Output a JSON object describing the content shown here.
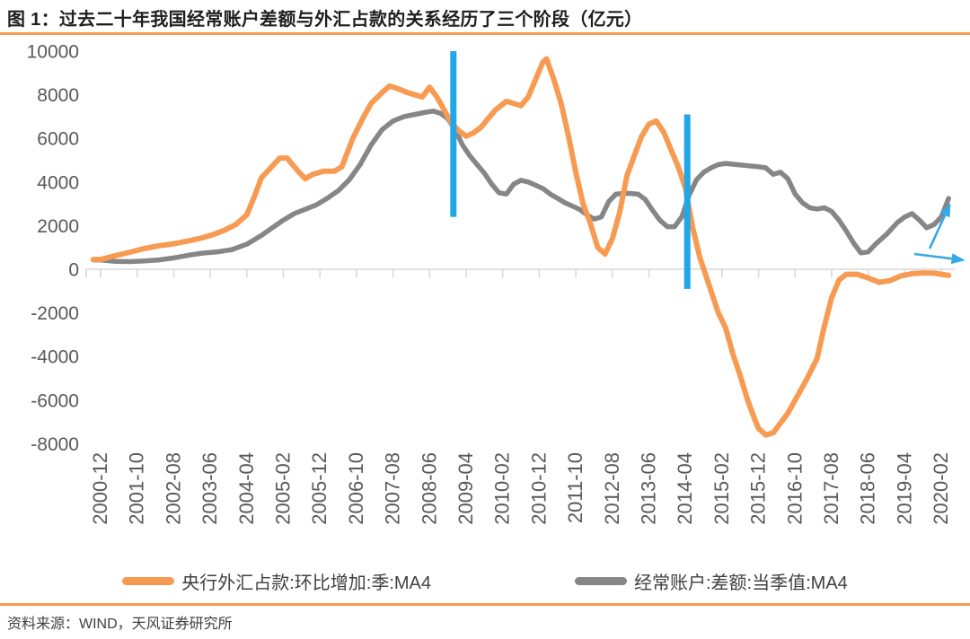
{
  "figure": {
    "title": "图 1：过去二十年我国经常账户差额与外汇占款的关系经历了三个阶段（亿元）",
    "source": "资料来源：WIND，天风证券研究所"
  },
  "colors": {
    "accent_orange": "#F79A52",
    "series_orange": "#F79A52",
    "series_gray": "#868686",
    "divider_blue": "#21A7E8",
    "arrow_blue": "#35A9E8",
    "axis_gray": "#D9D9D9",
    "tick_label": "#595959",
    "title_text": "#1F1F1F",
    "body_text": "#404040"
  },
  "chart_data": {
    "type": "line",
    "unit": "亿元",
    "title": "过去二十年我国经常账户差额与外汇占款的关系经历了三个阶段（亿元）",
    "grid": false,
    "legend_position": "bottom",
    "ylim": [
      -8000,
      10000
    ],
    "y_ticks": [
      10000,
      8000,
      6000,
      4000,
      2000,
      0,
      -2000,
      -4000,
      -6000,
      -8000
    ],
    "x_unit": "months_since_2000-12",
    "x_tick_step_months": 10,
    "x_tick_labels": [
      "2000-12",
      "2001-10",
      "2002-08",
      "2003-06",
      "2004-04",
      "2005-02",
      "2005-12",
      "2006-10",
      "2007-08",
      "2008-06",
      "2009-04",
      "2010-02",
      "2010-12",
      "2011-10",
      "2012-08",
      "2013-06",
      "2014-04",
      "2015-02",
      "2015-12",
      "2016-10",
      "2017-08",
      "2018-06",
      "2019-04",
      "2020-02"
    ],
    "series": [
      {
        "name": "央行外汇占款:环比增加:季:MA4",
        "color": "#F79A52",
        "points": [
          [
            -2,
            450
          ],
          [
            0,
            450
          ],
          [
            4,
            620
          ],
          [
            8,
            780
          ],
          [
            12,
            950
          ],
          [
            16,
            1080
          ],
          [
            20,
            1170
          ],
          [
            24,
            1300
          ],
          [
            28,
            1450
          ],
          [
            31,
            1600
          ],
          [
            34,
            1800
          ],
          [
            37,
            2050
          ],
          [
            40,
            2500
          ],
          [
            42,
            3300
          ],
          [
            44,
            4200
          ],
          [
            46,
            4550
          ],
          [
            49,
            5100
          ],
          [
            51,
            5100
          ],
          [
            54,
            4500
          ],
          [
            56,
            4150
          ],
          [
            58,
            4350
          ],
          [
            61,
            4500
          ],
          [
            64,
            4500
          ],
          [
            66,
            4700
          ],
          [
            69,
            6000
          ],
          [
            72,
            7000
          ],
          [
            74,
            7600
          ],
          [
            77,
            8100
          ],
          [
            79,
            8400
          ],
          [
            81,
            8300
          ],
          [
            84,
            8100
          ],
          [
            86,
            8000
          ],
          [
            88,
            7900
          ],
          [
            90,
            8350
          ],
          [
            92,
            7900
          ],
          [
            94,
            7300
          ],
          [
            96,
            6700
          ],
          [
            98,
            6350
          ],
          [
            100,
            6100
          ],
          [
            102,
            6250
          ],
          [
            104,
            6500
          ],
          [
            106,
            6900
          ],
          [
            108,
            7300
          ],
          [
            111,
            7700
          ],
          [
            113,
            7600
          ],
          [
            115,
            7500
          ],
          [
            117,
            7900
          ],
          [
            119,
            8700
          ],
          [
            121,
            9500
          ],
          [
            122,
            9650
          ],
          [
            124,
            8700
          ],
          [
            126,
            7600
          ],
          [
            128,
            6100
          ],
          [
            130,
            4450
          ],
          [
            132,
            3000
          ],
          [
            134,
            2100
          ],
          [
            136,
            1000
          ],
          [
            138,
            700
          ],
          [
            140,
            1400
          ],
          [
            142,
            2600
          ],
          [
            144,
            4300
          ],
          [
            146,
            5200
          ],
          [
            148,
            6100
          ],
          [
            150,
            6650
          ],
          [
            152,
            6800
          ],
          [
            154,
            6300
          ],
          [
            156,
            5500
          ],
          [
            158,
            4700
          ],
          [
            160,
            3700
          ],
          [
            162,
            1900
          ],
          [
            164,
            500
          ],
          [
            165,
            0
          ],
          [
            167,
            -1000
          ],
          [
            169,
            -2000
          ],
          [
            171,
            -2700
          ],
          [
            173,
            -3900
          ],
          [
            175,
            -4900
          ],
          [
            177,
            -6000
          ],
          [
            179,
            -6900
          ],
          [
            180,
            -7300
          ],
          [
            182,
            -7600
          ],
          [
            184,
            -7500
          ],
          [
            186,
            -7050
          ],
          [
            188,
            -6600
          ],
          [
            190,
            -6000
          ],
          [
            193,
            -5100
          ],
          [
            196,
            -4100
          ],
          [
            198,
            -2600
          ],
          [
            200,
            -1300
          ],
          [
            202,
            -500
          ],
          [
            204,
            -230
          ],
          [
            207,
            -230
          ],
          [
            210,
            -400
          ],
          [
            213,
            -600
          ],
          [
            216,
            -520
          ],
          [
            219,
            -300
          ],
          [
            222,
            -200
          ],
          [
            225,
            -170
          ],
          [
            228,
            -180
          ],
          [
            230,
            -230
          ],
          [
            232,
            -280
          ]
        ]
      },
      {
        "name": "经常账户:差额:当季值:MA4",
        "color": "#868686",
        "points": [
          [
            -2,
            430
          ],
          [
            0,
            430
          ],
          [
            4,
            360
          ],
          [
            8,
            350
          ],
          [
            12,
            380
          ],
          [
            16,
            430
          ],
          [
            20,
            520
          ],
          [
            24,
            640
          ],
          [
            28,
            740
          ],
          [
            32,
            800
          ],
          [
            36,
            900
          ],
          [
            40,
            1150
          ],
          [
            44,
            1550
          ],
          [
            47,
            1900
          ],
          [
            50,
            2250
          ],
          [
            53,
            2550
          ],
          [
            56,
            2750
          ],
          [
            59,
            2950
          ],
          [
            62,
            3250
          ],
          [
            65,
            3600
          ],
          [
            68,
            4100
          ],
          [
            71,
            4800
          ],
          [
            74,
            5700
          ],
          [
            77,
            6400
          ],
          [
            80,
            6800
          ],
          [
            83,
            7000
          ],
          [
            86,
            7100
          ],
          [
            89,
            7200
          ],
          [
            91,
            7250
          ],
          [
            93,
            7150
          ],
          [
            95,
            6900
          ],
          [
            97,
            6400
          ],
          [
            99,
            5700
          ],
          [
            101,
            5200
          ],
          [
            103,
            4800
          ],
          [
            105,
            4400
          ],
          [
            107,
            3900
          ],
          [
            109,
            3500
          ],
          [
            111,
            3450
          ],
          [
            113,
            3900
          ],
          [
            115,
            4080
          ],
          [
            117,
            4000
          ],
          [
            119,
            3850
          ],
          [
            121,
            3700
          ],
          [
            123,
            3450
          ],
          [
            125,
            3250
          ],
          [
            127,
            3050
          ],
          [
            129,
            2900
          ],
          [
            131,
            2750
          ],
          [
            133,
            2500
          ],
          [
            135,
            2300
          ],
          [
            137,
            2400
          ],
          [
            139,
            3100
          ],
          [
            141,
            3450
          ],
          [
            144,
            3480
          ],
          [
            147,
            3450
          ],
          [
            149,
            3200
          ],
          [
            151,
            2700
          ],
          [
            153,
            2250
          ],
          [
            155,
            1950
          ],
          [
            157,
            1950
          ],
          [
            159,
            2400
          ],
          [
            161,
            3400
          ],
          [
            163,
            4100
          ],
          [
            165,
            4450
          ],
          [
            167,
            4650
          ],
          [
            169,
            4800
          ],
          [
            171,
            4850
          ],
          [
            174,
            4800
          ],
          [
            177,
            4750
          ],
          [
            180,
            4700
          ],
          [
            182,
            4650
          ],
          [
            184,
            4350
          ],
          [
            186,
            4450
          ],
          [
            188,
            4150
          ],
          [
            190,
            3450
          ],
          [
            192,
            3050
          ],
          [
            194,
            2820
          ],
          [
            196,
            2760
          ],
          [
            198,
            2820
          ],
          [
            200,
            2650
          ],
          [
            202,
            2250
          ],
          [
            204,
            1750
          ],
          [
            206,
            1200
          ],
          [
            208,
            750
          ],
          [
            210,
            800
          ],
          [
            212,
            1150
          ],
          [
            215,
            1600
          ],
          [
            218,
            2150
          ],
          [
            220,
            2400
          ],
          [
            222,
            2550
          ],
          [
            224,
            2250
          ],
          [
            226,
            1900
          ],
          [
            228,
            2050
          ],
          [
            230,
            2400
          ],
          [
            232,
            3250
          ]
        ]
      }
    ],
    "annotations": {
      "stage_dividers": [
        {
          "date": "2008-12",
          "x_months": 96.5,
          "from_value": 2400,
          "to_value": 10000
        },
        {
          "date": "2014-04",
          "x_months": 160.5,
          "from_value": -900,
          "to_value": 7100
        }
      ],
      "arrows": [
        {
          "name": "upward-trend-arrow",
          "from": [
            226.8,
            950
          ],
          "to": [
            232.3,
            2960
          ]
        },
        {
          "name": "flat-trend-arrow",
          "from": [
            222.6,
            700
          ],
          "to": [
            236.0,
            420
          ]
        }
      ]
    }
  }
}
